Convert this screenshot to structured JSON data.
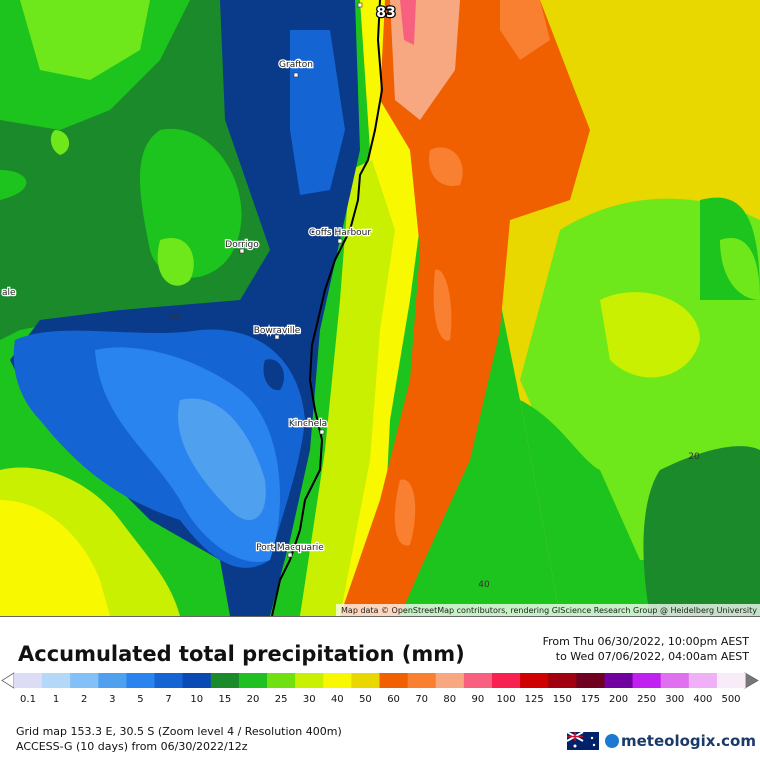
{
  "map": {
    "places": [
      "Grafton",
      "Dorrigo",
      "Coffs Harbour",
      "Bowraville",
      "Kinchela",
      "Port Macquarie",
      "ale"
    ],
    "contour_labels": [
      "20",
      "20",
      "40"
    ],
    "max_label": "83",
    "attribution": "Map data © OpenStreetMap contributors, rendering GIScience Research Group @ Heidelberg University"
  },
  "legend": {
    "title": "Accumulated total precipitation (mm)",
    "period_from": "From Thu 06/30/2022, 10:00pm AEST",
    "period_to": "to Wed 07/06/2022, 04:00am AEST",
    "stops": [
      {
        "label": "0.1",
        "color": "#dcdcf4"
      },
      {
        "label": "1",
        "color": "#b4d8f8"
      },
      {
        "label": "2",
        "color": "#84c0f8"
      },
      {
        "label": "3",
        "color": "#50a0f0"
      },
      {
        "label": "5",
        "color": "#2a84f0"
      },
      {
        "label": "7",
        "color": "#1464d4"
      },
      {
        "label": "10",
        "color": "#0a4ab4"
      },
      {
        "label": "15",
        "color": "#1a8a2a"
      },
      {
        "label": "20",
        "color": "#20c020"
      },
      {
        "label": "25",
        "color": "#70e010"
      },
      {
        "label": "30",
        "color": "#c8f000"
      },
      {
        "label": "40",
        "color": "#f8f800"
      },
      {
        "label": "50",
        "color": "#e8d800"
      },
      {
        "label": "60",
        "color": "#f06000"
      },
      {
        "label": "70",
        "color": "#f88030"
      },
      {
        "label": "80",
        "color": "#f8a880"
      },
      {
        "label": "90",
        "color": "#f86080"
      },
      {
        "label": "100",
        "color": "#f82050"
      },
      {
        "label": "125",
        "color": "#d00000"
      },
      {
        "label": "150",
        "color": "#a00010"
      },
      {
        "label": "175",
        "color": "#700020"
      },
      {
        "label": "200",
        "color": "#7000a0"
      },
      {
        "label": "250",
        "color": "#c020f0"
      },
      {
        "label": "300",
        "color": "#e070f0"
      },
      {
        "label": "400",
        "color": "#f0b0f8"
      },
      {
        "label": "500",
        "color": "#f8ecf8"
      }
    ]
  },
  "footer": {
    "grid": "Grid map 153.3 E, 30.5 S (Zoom level 4 / Resolution 400m)",
    "model": "ACCESS-G (10 days) from 06/30/2022/12z",
    "brand": "meteologix.com"
  }
}
